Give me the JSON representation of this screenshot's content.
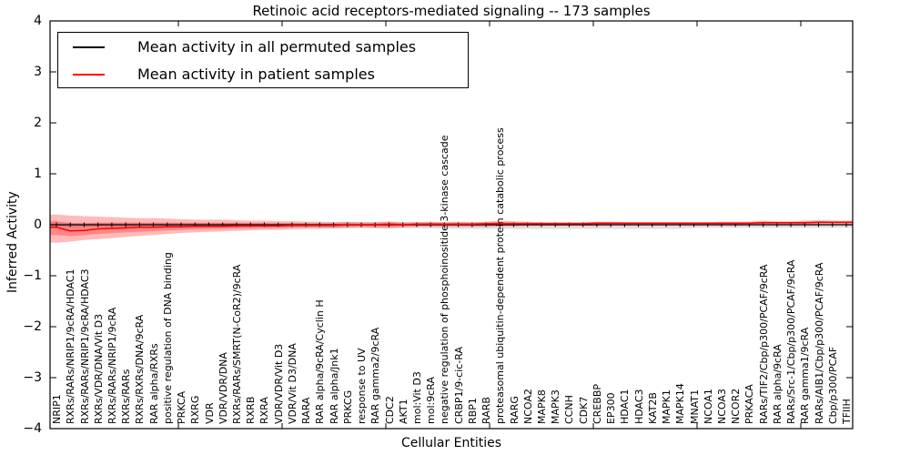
{
  "title": "Retinoic acid receptors-mediated signaling -- 173 samples",
  "legend": [
    {
      "label": "Mean activity in all permuted samples",
      "color": "#000000"
    },
    {
      "label": "Mean activity in patient samples",
      "color": "#ff0000"
    }
  ],
  "axes": {
    "ylabel": "Inferred Activity",
    "xlabel": "Cellular Entities",
    "yticks": [
      4,
      3,
      2,
      1,
      0,
      -1,
      -2,
      -3,
      -4
    ],
    "ylim": [
      -4,
      4
    ],
    "grid": false
  },
  "colors": {
    "permuted_line": "#000000",
    "patient_line": "#ff0000",
    "patient_band": "#ff0000",
    "permuted_band": "#808080",
    "frame": "#000000"
  },
  "chart_data": {
    "type": "line",
    "title": "Retinoic acid receptors-mediated signaling -- 173 samples",
    "xlabel": "Cellular Entities",
    "ylabel": "Inferred Activity",
    "ylim": [
      -4,
      4
    ],
    "legend_position": "upper left",
    "categories": [
      "NRIP1",
      "RXRs/RARs/NRIP1/9cRA/HDAC1",
      "RXRs/RARs/NRIP1/9cRA/HDAC3",
      "RXRs/VDR/DNA/Vit D3",
      "RXRs/RARs/NRIP1/9cRA",
      "RXRs/RARs",
      "RXRs/RXRs/DNA/9cRA",
      "RAR alpha/RXRs",
      "positive regulation of DNA binding",
      "PRKCA",
      "RXRG",
      "VDR",
      "VDR/VDR/DNA",
      "RXRs/RARs/SMRT(N-CoR2)/9cRA",
      "RXRB",
      "RXRA",
      "VDR/VDR/Vit D3",
      "VDR/Vit D3/DNA",
      "RARA",
      "RAR alpha/9cRA/Cyclin H",
      "RAR alpha/Jnk1",
      "PRKCG",
      "response to UV",
      "RAR gamma2/9cRA",
      "CDC2",
      "AKT1",
      "mol:Vit D3",
      "mol:9cRA",
      "negative regulation of phosphoinositide 3-kinase cascade",
      "CRBP1/9-cic-RA",
      "RBP1",
      "RARB",
      "proteasomal ubiquitin-dependent protein catabolic process",
      "RARG",
      "NCOA2",
      "MAPK8",
      "MAPK3",
      "CCNH",
      "CDK7",
      "CREBBP",
      "EP300",
      "HDAC1",
      "HDAC3",
      "KAT2B",
      "MAPK1",
      "MAPK14",
      "MNAT1",
      "NCOA1",
      "NCOA3",
      "NCOR2",
      "PRKACA",
      "RARs/TIF2/Cbp/p300/PCAF/9cRA",
      "RAR alpha/9cRA",
      "RARs/Src-1/Cbp/p300/PCAF/9cRA",
      "RAR gamma1/9cRA",
      "RARs/AIB1/Cbp/p300/PCAF/9cRA",
      "Cbp/p300/PCAF",
      "TFIIH"
    ],
    "series": [
      {
        "name": "Mean activity in all permuted samples",
        "color": "#000000",
        "values": [
          0,
          0,
          0,
          0,
          0,
          0,
          0,
          0,
          0,
          0,
          0,
          0,
          0,
          0,
          0,
          0,
          0,
          0,
          0,
          0,
          0,
          0,
          0,
          0,
          0,
          0,
          0,
          0,
          0,
          0,
          0,
          0,
          0,
          0,
          0,
          0,
          0,
          0,
          0,
          0,
          0,
          0,
          0,
          0,
          0,
          0,
          0,
          0,
          0,
          0,
          0,
          0,
          0,
          0,
          0,
          0,
          0,
          0
        ],
        "band_upper": [
          0.04,
          0.04,
          0.04,
          0.04,
          0.04,
          0.04,
          0.04,
          0.04,
          0.04,
          0.04,
          0.04,
          0.04,
          0.04,
          0.04,
          0.04,
          0.04,
          0.04,
          0.04,
          0.04,
          0.04,
          0.05,
          0.05,
          0.05,
          0.05,
          0.05,
          0.05,
          0.05,
          0.05,
          0.05,
          0.05,
          0.05,
          0.05,
          0.05,
          0.05,
          0.05,
          0.05,
          0.05,
          0.05,
          0.05,
          0.05,
          0.05,
          0.05,
          0.05,
          0.05,
          0.05,
          0.05,
          0.04,
          0.04,
          0.04,
          0.04,
          0.04,
          0.04,
          0.04,
          0.04,
          0.04,
          0.04,
          0.04,
          0.04
        ],
        "band_lower": [
          -0.05,
          -0.05,
          -0.05,
          -0.05,
          -0.05,
          -0.05,
          -0.05,
          -0.05,
          -0.05,
          -0.05,
          -0.05,
          -0.05,
          -0.05,
          -0.05,
          -0.05,
          -0.05,
          -0.05,
          -0.05,
          -0.05,
          -0.05,
          -0.07,
          -0.07,
          -0.07,
          -0.07,
          -0.07,
          -0.07,
          -0.07,
          -0.07,
          -0.08,
          -0.08,
          -0.08,
          -0.08,
          -0.08,
          -0.08,
          -0.08,
          -0.08,
          -0.08,
          -0.08,
          -0.08,
          -0.08,
          -0.08,
          -0.08,
          -0.08,
          -0.08,
          -0.08,
          -0.08,
          -0.06,
          -0.06,
          -0.06,
          -0.06,
          -0.06,
          -0.06,
          -0.06,
          -0.06,
          -0.06,
          -0.06,
          -0.06,
          -0.06
        ]
      },
      {
        "name": "Mean activity in patient samples",
        "color": "#ff0000",
        "values": [
          -0.05,
          -0.12,
          -0.11,
          -0.08,
          -0.07,
          -0.06,
          -0.05,
          -0.05,
          -0.04,
          -0.04,
          -0.03,
          -0.03,
          -0.03,
          -0.02,
          -0.02,
          -0.02,
          -0.02,
          -0.01,
          -0.01,
          -0.01,
          -0.01,
          0,
          0,
          0,
          0.01,
          0,
          0.01,
          0.01,
          0.01,
          0.01,
          0.01,
          0.02,
          0.02,
          0.02,
          0.02,
          0.02,
          0.02,
          0.02,
          0.02,
          0.03,
          0.03,
          0.03,
          0.03,
          0.03,
          0.03,
          0.03,
          0.03,
          0.03,
          0.03,
          0.03,
          0.03,
          0.04,
          0.04,
          0.04,
          0.04,
          0.05,
          0.05,
          0.05
        ],
        "band_upper": [
          0.2,
          0.18,
          0.17,
          0.16,
          0.15,
          0.14,
          0.13,
          0.13,
          0.12,
          0.11,
          0.1,
          0.1,
          0.1,
          0.09,
          0.08,
          0.08,
          0.07,
          0.07,
          0.06,
          0.06,
          0.05,
          0.06,
          0.05,
          0.05,
          0.07,
          0.05,
          0.05,
          0.06,
          0.05,
          0.06,
          0.05,
          0.06,
          0.08,
          0.07,
          0.06,
          0.05,
          0.05,
          0.05,
          0.05,
          0.06,
          0.06,
          0.05,
          0.05,
          0.05,
          0.05,
          0.05,
          0.05,
          0.05,
          0.06,
          0.06,
          0.06,
          0.08,
          0.07,
          0.07,
          0.08,
          0.09,
          0.08,
          0.08
        ],
        "band_lower": [
          -0.35,
          -0.33,
          -0.3,
          -0.28,
          -0.26,
          -0.24,
          -0.22,
          -0.2,
          -0.18,
          -0.16,
          -0.15,
          -0.14,
          -0.13,
          -0.12,
          -0.11,
          -0.1,
          -0.1,
          -0.09,
          -0.08,
          -0.08,
          -0.07,
          -0.06,
          -0.05,
          -0.06,
          -0.07,
          -0.05,
          -0.04,
          -0.04,
          -0.04,
          -0.04,
          -0.04,
          -0.04,
          -0.03,
          -0.03,
          -0.02,
          -0.02,
          -0.02,
          -0.02,
          -0.02,
          -0.02,
          -0.01,
          -0.01,
          -0.01,
          -0.01,
          -0.01,
          -0.01,
          -0.01,
          -0.01,
          -0.01,
          -0.01,
          0,
          0,
          0,
          0,
          0,
          0.01,
          0.01,
          0.01
        ]
      }
    ]
  }
}
